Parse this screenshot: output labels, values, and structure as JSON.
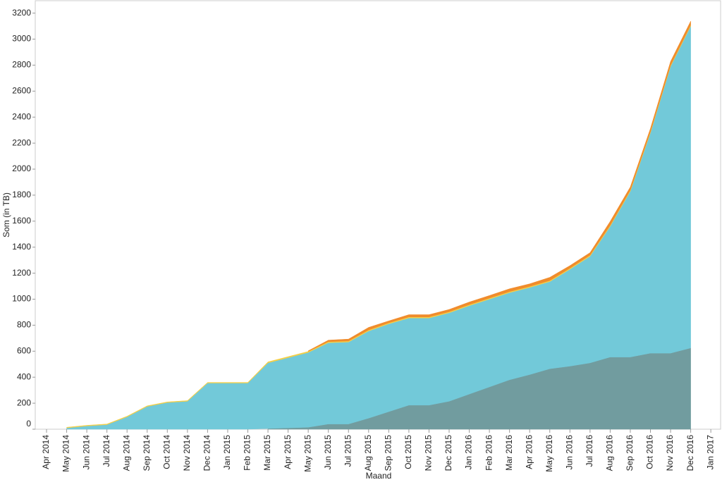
{
  "chart_data": {
    "type": "stacked-area",
    "x_label": "Maand",
    "y_label": "Som (in TB)",
    "categories": [
      "Apr 2014",
      "May 2014",
      "Jun 2014",
      "Jul 2014",
      "Aug 2014",
      "Sep 2014",
      "Oct 2014",
      "Nov 2014",
      "Dec 2014",
      "Jan 2015",
      "Feb 2015",
      "Mar 2015",
      "Apr 2015",
      "May 2015",
      "Jun 2015",
      "Jul 2015",
      "Aug 2015",
      "Sep 2015",
      "Oct 2015",
      "Nov 2015",
      "Dec 2015",
      "Jan 2016",
      "Feb 2016",
      "Mar 2016",
      "Apr 2016",
      "May 2016",
      "Jun 2016",
      "Jul 2016",
      "Aug 2016",
      "Sep 2016",
      "Oct 2016",
      "Nov 2016",
      "Dec 2016",
      "Jan 2017"
    ],
    "series": [
      {
        "color": "#719c9f",
        "values": [
          null,
          null,
          null,
          null,
          null,
          null,
          null,
          null,
          null,
          null,
          null,
          5,
          10,
          15,
          40,
          40,
          85,
          135,
          185,
          185,
          215,
          270,
          325,
          380,
          420,
          465,
          485,
          510,
          555,
          555,
          585,
          585,
          625,
          null
        ]
      },
      {
        "color": "#72c9d9",
        "values": [
          null,
          10,
          25,
          35,
          95,
          175,
          205,
          215,
          355,
          355,
          355,
          505,
          540,
          575,
          625,
          630,
          670,
          675,
          670,
          670,
          680,
          680,
          675,
          670,
          670,
          670,
          745,
          820,
          1005,
          1275,
          1695,
          2205,
          2475,
          null
        ]
      },
      {
        "color": "#f4cf47",
        "values": [
          null,
          5,
          5,
          5,
          5,
          5,
          5,
          5,
          5,
          5,
          5,
          8,
          8,
          8,
          8,
          8,
          8,
          8,
          8,
          8,
          8,
          8,
          8,
          8,
          8,
          8,
          8,
          8,
          8,
          8,
          8,
          8,
          8,
          null
        ]
      },
      {
        "color": "#f08c2c",
        "values": [
          null,
          null,
          null,
          null,
          null,
          null,
          null,
          null,
          null,
          null,
          null,
          null,
          null,
          5,
          12,
          15,
          20,
          15,
          18,
          18,
          18,
          20,
          20,
          22,
          20,
          25,
          20,
          20,
          30,
          25,
          25,
          30,
          30,
          null
        ]
      }
    ],
    "ylim": [
      0,
      3290
    ],
    "yticks": [
      0,
      200,
      400,
      600,
      800,
      1000,
      1200,
      1400,
      1600,
      1800,
      2000,
      2200,
      2400,
      2600,
      2800,
      3000,
      3200
    ]
  }
}
